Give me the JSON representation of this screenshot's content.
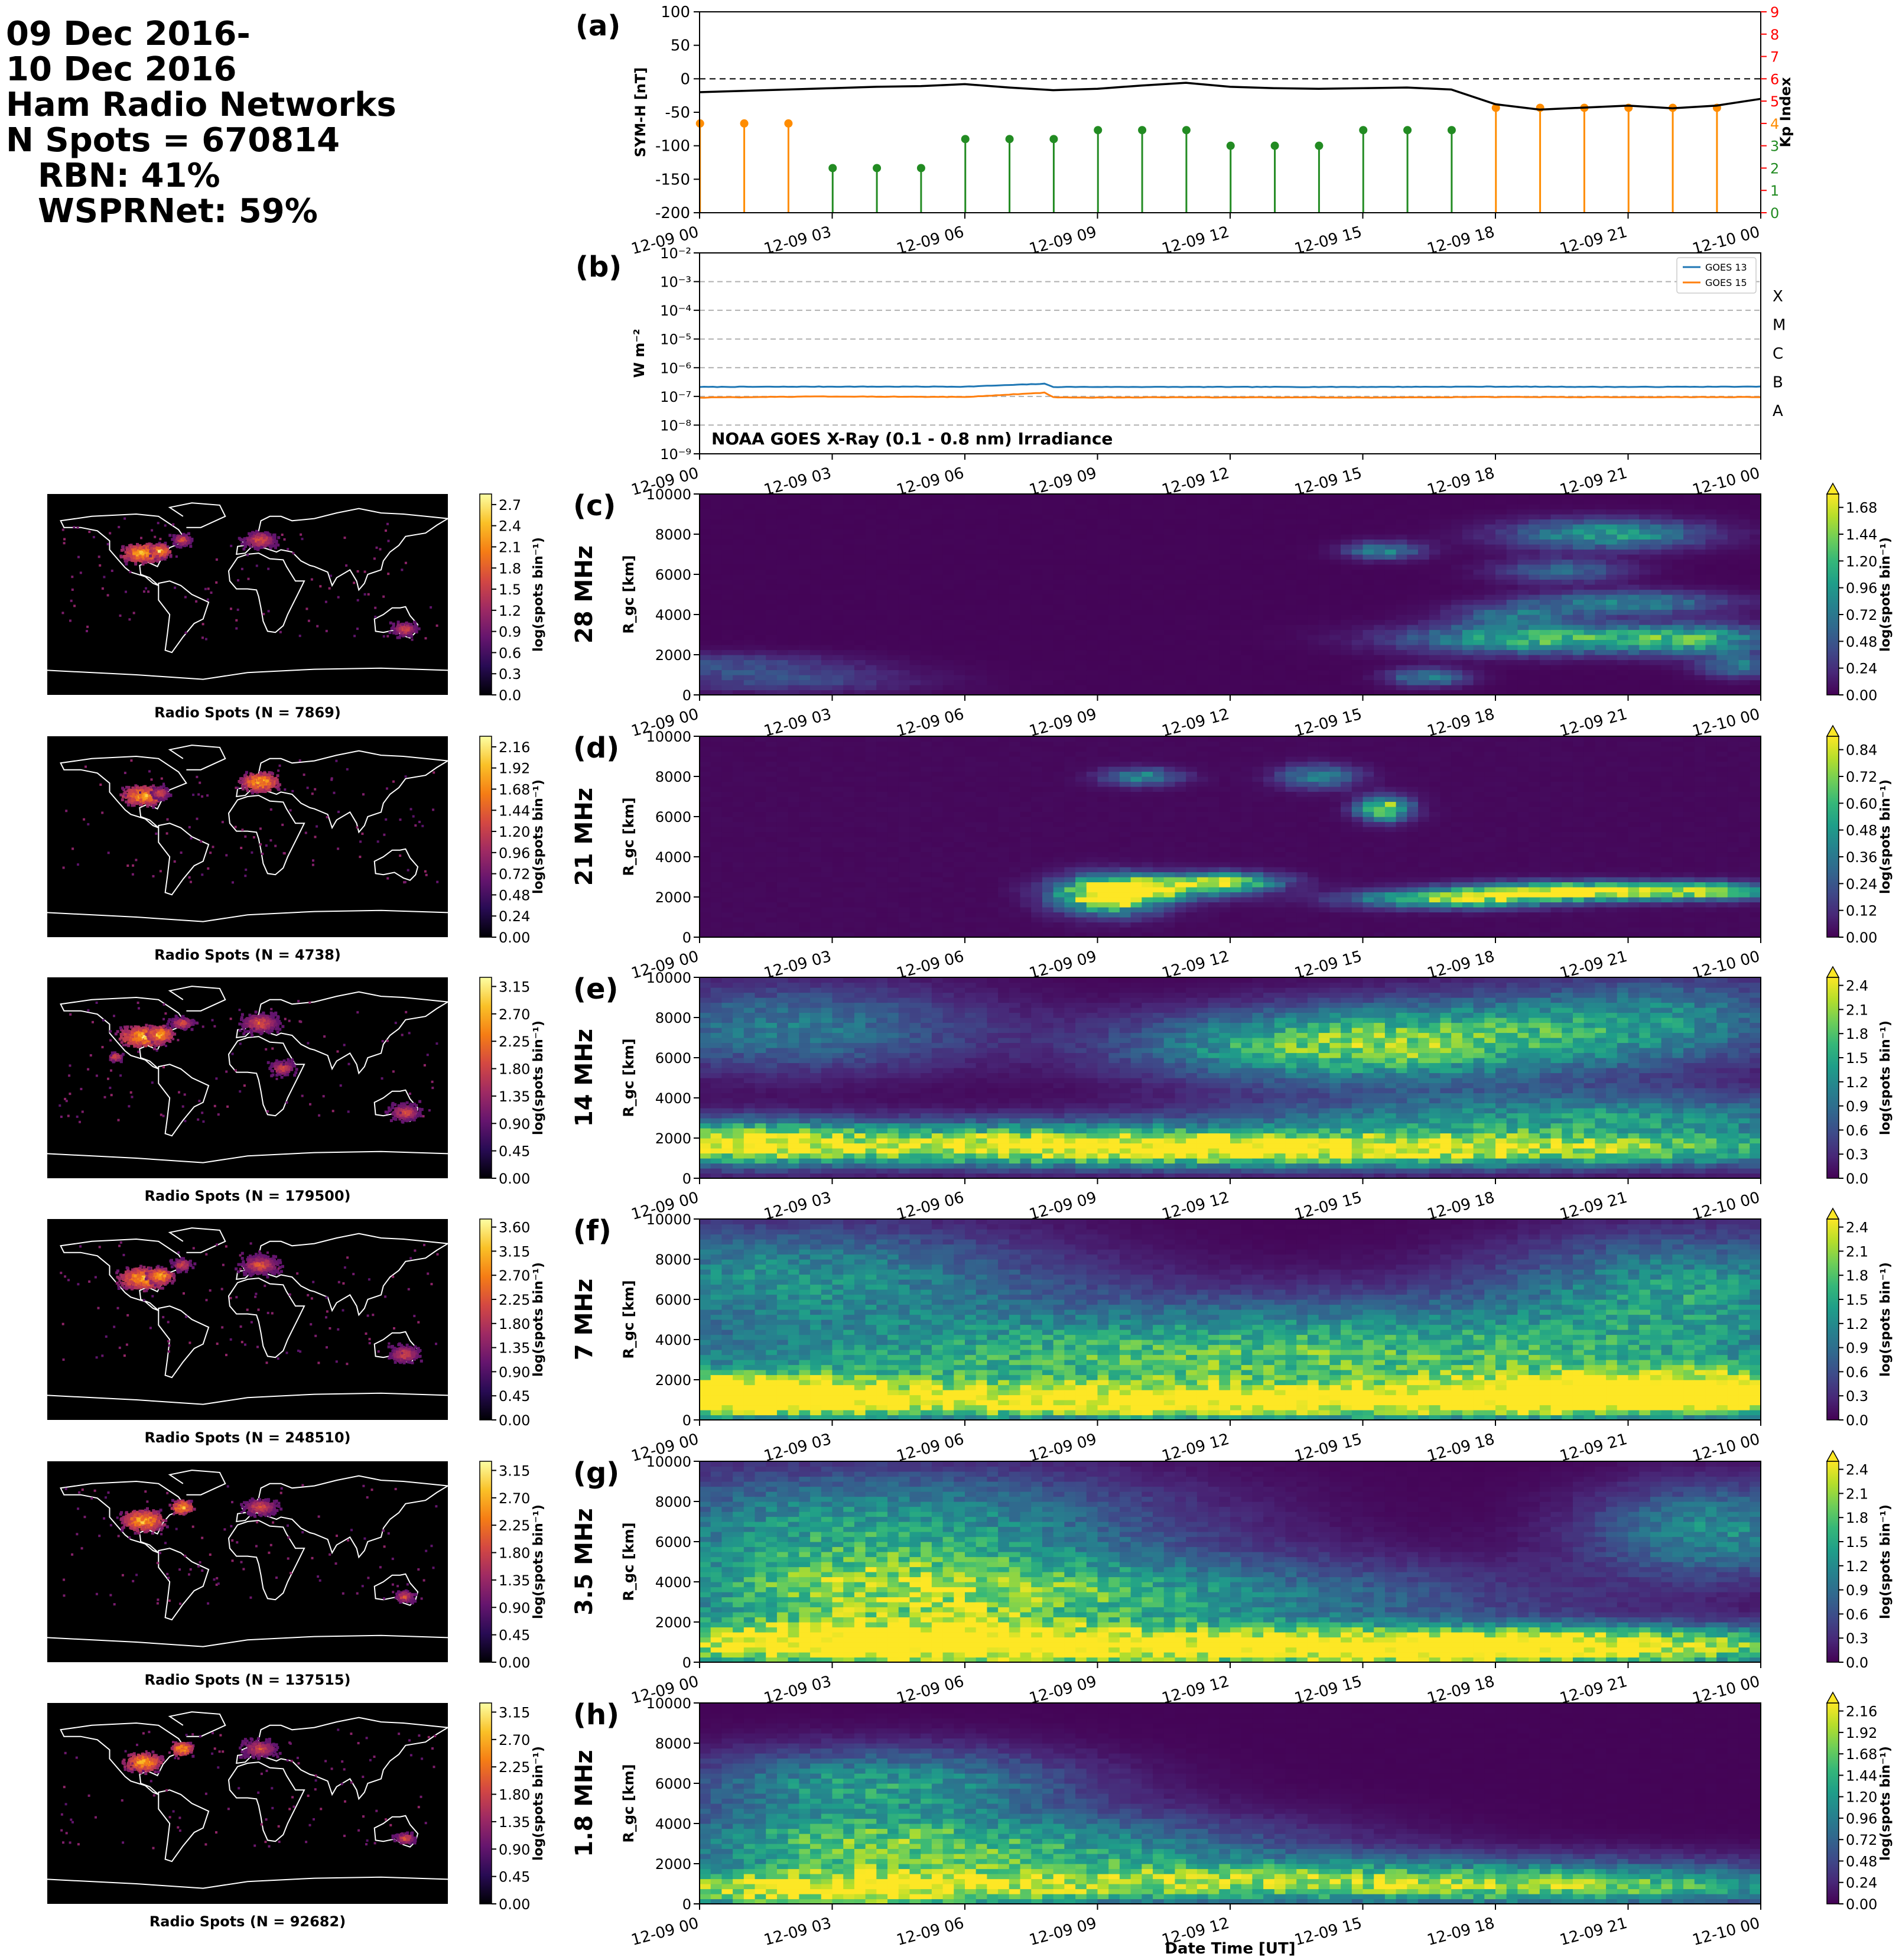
{
  "header": {
    "line1": "09 Dec 2016-",
    "line2": "10 Dec 2016",
    "line3": "Ham Radio Networks",
    "line4": "N Spots = 670814",
    "line5": "RBN: 41%",
    "line6": "WSPRNet: 59%"
  },
  "time_ticks": [
    "12-09 00",
    "12-09 03",
    "12-09 06",
    "12-09 09",
    "12-09 12",
    "12-09 15",
    "12-09 18",
    "12-09 21",
    "12-10 00"
  ],
  "xlabel": "Date Time [UT]",
  "colors": {
    "symh": "#000000",
    "kp_green": "#228b22",
    "kp_orange": "#ff8c00",
    "kp_axis": "#ff0000",
    "goes13": "#1f77b4",
    "goes15": "#ff7f0e"
  },
  "chart_data": [
    {
      "id": "a",
      "type": "line",
      "panel_label": "(a)",
      "ylabel": "SYM-H [nT]",
      "ylim": [
        -200,
        100
      ],
      "yticks": [
        -200,
        -150,
        -100,
        -50,
        0,
        50,
        100
      ],
      "y2label": "Kp Index",
      "y2lim": [
        0,
        9
      ],
      "y2ticks": [
        0,
        1,
        2,
        3,
        4,
        5,
        6,
        7,
        8,
        9
      ],
      "symh_hours": [
        0,
        1,
        2,
        3,
        4,
        5,
        6,
        7,
        8,
        9,
        10,
        11,
        12,
        13,
        14,
        15,
        16,
        17,
        18,
        19,
        20,
        21,
        22,
        23,
        24
      ],
      "symh_values": [
        -20,
        -18,
        -16,
        -14,
        -12,
        -11,
        -8,
        -13,
        -17,
        -15,
        -10,
        -6,
        -12,
        -14,
        -15,
        -14,
        -13,
        -16,
        -38,
        -46,
        -43,
        -40,
        -44,
        -40,
        -30
      ],
      "kp_hours": [
        0,
        1,
        2,
        3,
        4,
        5,
        6,
        7,
        8,
        9,
        10,
        11,
        12,
        13,
        14,
        15,
        16,
        17,
        18,
        19,
        20,
        21,
        22,
        23
      ],
      "kp_values": [
        4,
        4,
        4,
        2,
        2,
        2,
        3.3,
        3.3,
        3.3,
        3.7,
        3.7,
        3.7,
        3,
        3,
        3,
        3.7,
        3.7,
        3.7,
        4.7,
        4.7,
        4.7,
        4.7,
        4.7,
        4.7
      ]
    },
    {
      "id": "b",
      "type": "line",
      "panel_label": "(b)",
      "ylabel": "W m⁻²",
      "yscale": "log",
      "ylim_exp": [
        -9,
        -2
      ],
      "ytick_labels": [
        "10⁻⁹",
        "10⁻⁸",
        "10⁻⁷",
        "10⁻⁶",
        "10⁻⁵",
        "10⁻⁴",
        "10⁻³",
        "10⁻²"
      ],
      "flare_classes": [
        "A",
        "B",
        "C",
        "M",
        "X"
      ],
      "annotation": "NOAA GOES X-Ray (0.1 - 0.8 nm) Irradiance",
      "legend": [
        "GOES 13",
        "GOES 15"
      ],
      "legend_loc": "top-right",
      "series": [
        {
          "name": "GOES 13",
          "hours": [
            0,
            3,
            6,
            7.8,
            8,
            9,
            12,
            15,
            18,
            21,
            24
          ],
          "log10": [
            -6.67,
            -6.66,
            -6.66,
            -6.56,
            -6.67,
            -6.67,
            -6.67,
            -6.67,
            -6.66,
            -6.67,
            -6.66
          ]
        },
        {
          "name": "GOES 15",
          "hours": [
            0,
            3,
            6,
            7.8,
            8,
            9,
            12,
            15,
            18,
            21,
            24
          ],
          "log10": [
            -7.04,
            -7.0,
            -7.02,
            -6.87,
            -7.03,
            -7.04,
            -7.03,
            -7.04,
            -7.02,
            -7.03,
            -7.02
          ]
        }
      ]
    },
    {
      "id": "c",
      "type": "heatmap",
      "panel_label": "(c)",
      "band": "28 MHz",
      "map_caption": "Radio Spots (N = 7869)",
      "map_cbar_ticks": [
        "0.0",
        "0.3",
        "0.6",
        "0.9",
        "1.2",
        "1.5",
        "1.8",
        "2.1",
        "2.4",
        "2.7"
      ],
      "map_cbar_max": 2.85,
      "cbar_ticks": [
        "0.00",
        "0.24",
        "0.48",
        "0.72",
        "0.96",
        "1.20",
        "1.44",
        "1.68"
      ],
      "cbar_max": 1.8,
      "ylabel": "R_gc [km]",
      "yticks": [
        0,
        2000,
        4000,
        6000,
        8000,
        10000
      ],
      "cbar_label": "log(spots bin⁻¹)",
      "blobs": [
        [
          0.5,
          1500,
          2,
          400,
          0.4
        ],
        [
          2,
          700,
          2,
          400,
          0.35
        ],
        [
          16.5,
          900,
          0.6,
          300,
          0.8
        ],
        [
          15.5,
          7200,
          0.6,
          300,
          0.8
        ],
        [
          19,
          2800,
          2,
          500,
          1.2
        ],
        [
          20.5,
          8000,
          1.5,
          500,
          1.0
        ],
        [
          21,
          4600,
          1.5,
          400,
          0.8
        ],
        [
          19.5,
          6200,
          1,
          400,
          0.6
        ],
        [
          22.5,
          2800,
          1.2,
          500,
          1.0
        ],
        [
          23.5,
          1500,
          0.6,
          400,
          0.7
        ],
        [
          18.5,
          4000,
          1,
          400,
          0.6
        ]
      ]
    },
    {
      "id": "d",
      "type": "heatmap",
      "panel_label": "(d)",
      "band": "21 MHz",
      "map_caption": "Radio Spots (N = 4738)",
      "map_cbar_ticks": [
        "0.00",
        "0.24",
        "0.48",
        "0.72",
        "0.96",
        "1.20",
        "1.44",
        "1.68",
        "1.92",
        "2.16"
      ],
      "map_cbar_max": 2.28,
      "cbar_ticks": [
        "0.00",
        "0.12",
        "0.24",
        "0.36",
        "0.48",
        "0.60",
        "0.72",
        "0.84"
      ],
      "cbar_max": 0.9,
      "ylabel": "R_gc [km]",
      "yticks": [
        0,
        2000,
        4000,
        6000,
        8000,
        10000
      ],
      "cbar_label": "log(spots bin⁻¹)",
      "blobs": [
        [
          9.3,
          2100,
          0.8,
          600,
          1.0
        ],
        [
          10.5,
          2500,
          1.2,
          400,
          0.6
        ],
        [
          12,
          2800,
          0.8,
          300,
          0.6
        ],
        [
          15.5,
          6400,
          0.4,
          400,
          0.8
        ],
        [
          14,
          8000,
          0.6,
          400,
          0.4
        ],
        [
          17,
          1900,
          1.5,
          300,
          0.7
        ],
        [
          19,
          2300,
          1.5,
          300,
          0.6
        ],
        [
          21,
          2300,
          1.5,
          300,
          0.6
        ],
        [
          23,
          2300,
          1,
          300,
          0.5
        ],
        [
          10,
          8000,
          0.6,
          300,
          0.4
        ]
      ]
    },
    {
      "id": "e",
      "type": "heatmap",
      "panel_label": "(e)",
      "band": "14 MHz",
      "map_caption": "Radio Spots (N = 179500)",
      "map_cbar_ticks": [
        "0.00",
        "0.45",
        "0.90",
        "1.35",
        "1.80",
        "2.25",
        "2.70",
        "3.15"
      ],
      "map_cbar_max": 3.3,
      "cbar_ticks": [
        "0.0",
        "0.3",
        "0.6",
        "0.9",
        "1.2",
        "1.5",
        "1.8",
        "2.1",
        "2.4"
      ],
      "cbar_max": 2.5,
      "ylabel": "R_gc [km]",
      "yticks": [
        0,
        2000,
        4000,
        6000,
        8000,
        10000
      ],
      "cbar_label": "log(spots bin⁻¹)",
      "blobs": [
        [
          14,
          1400,
          9,
          600,
          2.3
        ],
        [
          6,
          2000,
          6,
          700,
          1.3
        ],
        [
          1,
          1800,
          1.5,
          800,
          1.2
        ],
        [
          14,
          6600,
          3,
          1200,
          1.6
        ],
        [
          20,
          3000,
          5,
          900,
          1.3
        ],
        [
          2,
          7500,
          3,
          1500,
          1.0
        ],
        [
          22,
          8000,
          2.5,
          1500,
          0.9
        ],
        [
          18,
          7000,
          3,
          1500,
          1.0
        ]
      ]
    },
    {
      "id": "f",
      "type": "heatmap",
      "panel_label": "(f)",
      "band": "7 MHz",
      "map_caption": "Radio Spots (N = 248510)",
      "map_cbar_ticks": [
        "0.00",
        "0.45",
        "0.90",
        "1.35",
        "1.80",
        "2.25",
        "2.70",
        "3.15",
        "3.60"
      ],
      "map_cbar_max": 3.75,
      "cbar_ticks": [
        "0.0",
        "0.3",
        "0.6",
        "0.9",
        "1.2",
        "1.5",
        "1.8",
        "2.1",
        "2.4"
      ],
      "cbar_max": 2.5,
      "ylabel": "R_gc [km]",
      "yticks": [
        0,
        2000,
        4000,
        6000,
        8000,
        10000
      ],
      "cbar_label": "log(spots bin⁻¹)",
      "blobs": [
        [
          12,
          900,
          11,
          600,
          2.2
        ],
        [
          0.5,
          1300,
          2.5,
          700,
          2.1
        ],
        [
          22,
          1500,
          3,
          700,
          2.0
        ],
        [
          12,
          2500,
          12,
          1500,
          1.4
        ],
        [
          2,
          7200,
          4,
          1800,
          1.2
        ],
        [
          22.5,
          6800,
          3,
          1800,
          1.2
        ],
        [
          14,
          4500,
          8,
          1500,
          0.8
        ]
      ]
    },
    {
      "id": "g",
      "type": "heatmap",
      "panel_label": "(g)",
      "band": "3.5 MHz",
      "map_caption": "Radio Spots (N = 137515)",
      "map_cbar_ticks": [
        "0.00",
        "0.45",
        "0.90",
        "1.35",
        "1.80",
        "2.25",
        "2.70",
        "3.15"
      ],
      "map_cbar_max": 3.3,
      "cbar_ticks": [
        "0.0",
        "0.3",
        "0.6",
        "0.9",
        "1.2",
        "1.5",
        "1.8",
        "2.1",
        "2.4"
      ],
      "cbar_max": 2.5,
      "ylabel": "R_gc [km]",
      "yticks": [
        0,
        2000,
        4000,
        6000,
        8000,
        10000
      ],
      "cbar_label": "log(spots bin⁻¹)",
      "blobs": [
        [
          3,
          900,
          4,
          800,
          2.2
        ],
        [
          20,
          800,
          5,
          700,
          2.2
        ],
        [
          12,
          700,
          6,
          700,
          1.8
        ],
        [
          4,
          6800,
          4.5,
          2000,
          1.3
        ],
        [
          23,
          6600,
          2,
          1600,
          1.2
        ],
        [
          10,
          3000,
          6,
          1500,
          1.1
        ],
        [
          4,
          3500,
          4,
          1500,
          1.2
        ]
      ]
    },
    {
      "id": "h",
      "type": "heatmap",
      "panel_label": "(h)",
      "band": "1.8 MHz",
      "map_caption": "Radio Spots (N = 92682)",
      "map_cbar_ticks": [
        "0.00",
        "0.45",
        "0.90",
        "1.35",
        "1.80",
        "2.25",
        "2.70",
        "3.15"
      ],
      "map_cbar_max": 3.3,
      "cbar_ticks": [
        "0.00",
        "0.24",
        "0.48",
        "0.72",
        "0.96",
        "1.20",
        "1.44",
        "1.68",
        "1.92",
        "2.16"
      ],
      "cbar_max": 2.25,
      "ylabel": "R_gc [km]",
      "yticks": [
        0,
        2000,
        4000,
        6000,
        8000,
        10000
      ],
      "cbar_label": "log(spots bin⁻¹)",
      "blobs": [
        [
          3,
          700,
          4,
          700,
          2.1
        ],
        [
          20,
          800,
          4,
          600,
          1.3
        ],
        [
          12,
          1000,
          4,
          700,
          1.0
        ],
        [
          4,
          6000,
          3,
          1200,
          1.2
        ],
        [
          8,
          2800,
          4,
          1200,
          1.0
        ],
        [
          3,
          3000,
          3,
          1200,
          1.1
        ],
        [
          17,
          1500,
          6,
          800,
          0.7
        ]
      ]
    }
  ]
}
